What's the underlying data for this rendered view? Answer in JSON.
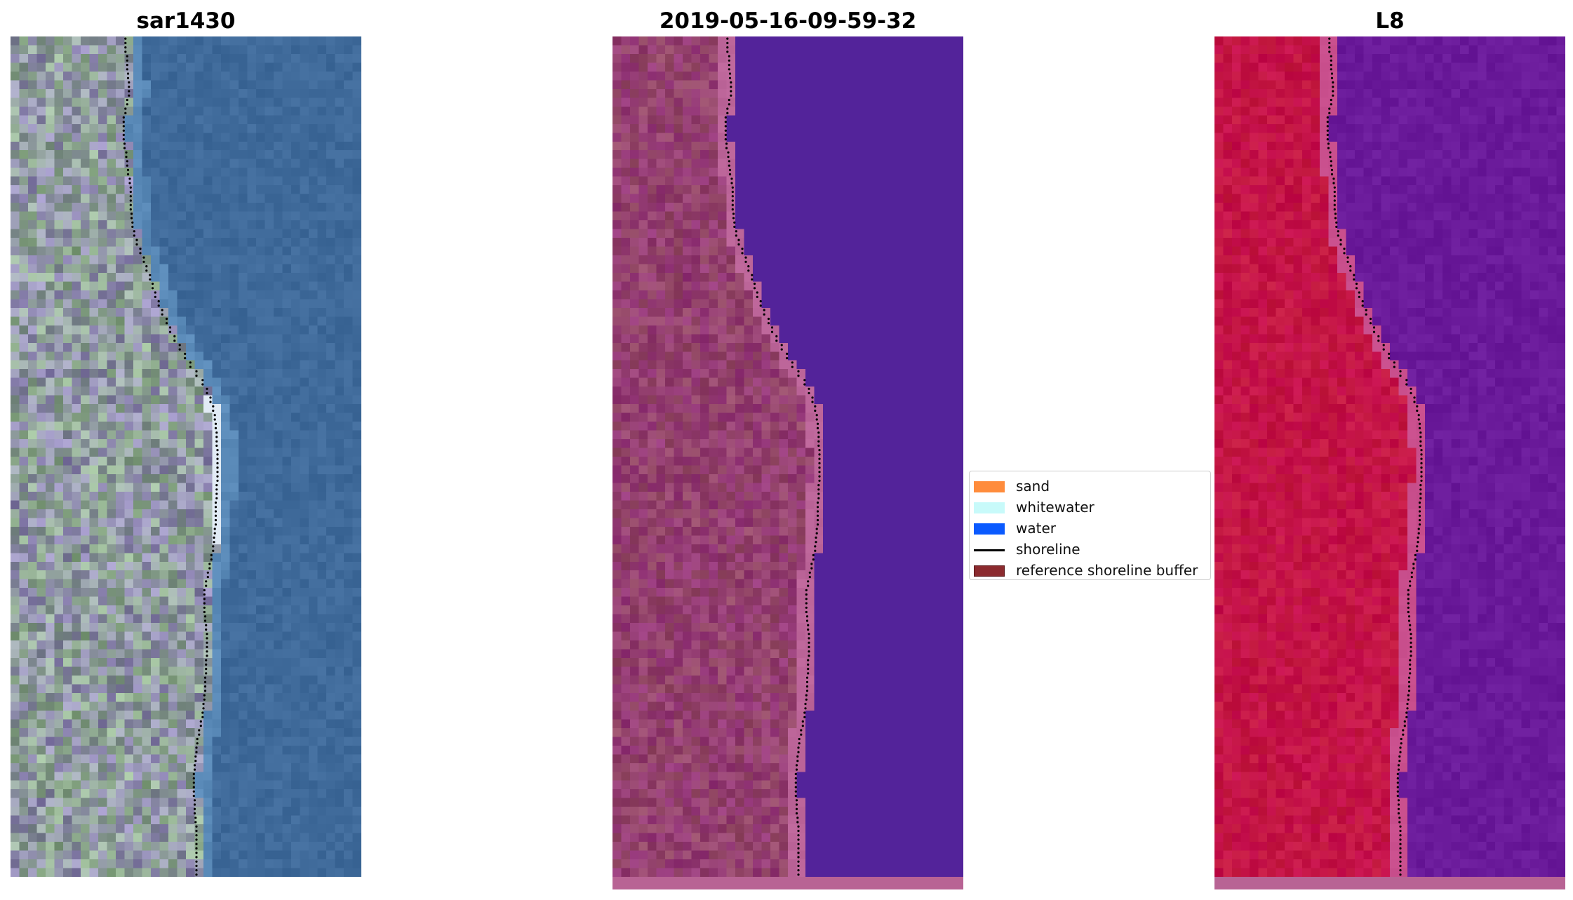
{
  "panels": [
    {
      "title": "sar1430",
      "kind": "rgb"
    },
    {
      "title": "2019-05-16-09-59-32",
      "kind": "classified"
    },
    {
      "title": "L8",
      "kind": "falsecolor"
    }
  ],
  "legend": {
    "items": [
      {
        "label": "sand",
        "type": "patch",
        "color": "#ff8c3c"
      },
      {
        "label": "whitewater",
        "type": "patch",
        "color": "#c8fafa"
      },
      {
        "label": "water",
        "type": "patch",
        "color": "#0a5aff"
      },
      {
        "label": "shoreline",
        "type": "line",
        "color": "#000000"
      },
      {
        "label": "reference shoreline buffer",
        "type": "patch",
        "color": "#8b2a2e"
      }
    ]
  },
  "colors": {
    "water_rgb": "#3f6a9a",
    "land_rgb": "#8f9aa0",
    "water_classified": "#53239a",
    "land_classified": "#94406f",
    "buffer_classified": "#bc6599",
    "water_falsecolor": "#6a1a9a",
    "land_falsecolor": "#c41446",
    "shoreline_dots": "#000000"
  }
}
